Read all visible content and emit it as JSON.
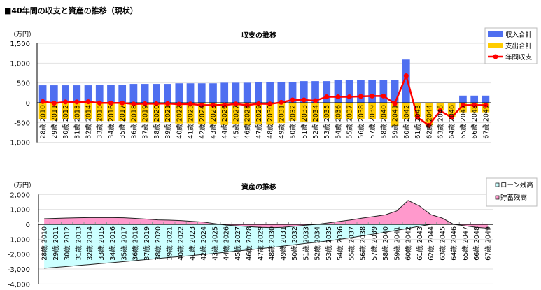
{
  "page_title": "■40年間の収支と資産の推移（現状）",
  "chart_data": [
    {
      "type": "bar",
      "title": "収支の推移",
      "ylabel": "（万円）",
      "ylim": [
        -1000,
        1500
      ],
      "yticks": [
        "1,500",
        "1,000",
        "500",
        "0",
        "-500",
        "-1,000"
      ],
      "ytick_values": [
        1500,
        1000,
        500,
        0,
        -500,
        -1000
      ],
      "grid": true,
      "legend_position": "top-right",
      "categories": [
        "28歳 2010",
        "29歳 2011",
        "30歳 2012",
        "31歳 2013",
        "32歳 2014",
        "33歳 2015",
        "34歳 2016",
        "35歳 2017",
        "36歳 2018",
        "37歳 2019",
        "38歳 2020",
        "39歳 2021",
        "40歳 2022",
        "41歳 2023",
        "42歳 2024",
        "43歳 2025",
        "44歳 2026",
        "45歳 2027",
        "46歳 2028",
        "47歳 2029",
        "48歳 2030",
        "49歳 2031",
        "50歳 2032",
        "51歳 2033",
        "52歳 2034",
        "53歳 2035",
        "54歳 2036",
        "55歳 2037",
        "56歳 2038",
        "57歳 2039",
        "58歳 2040",
        "59歳 2041",
        "60歳 2042",
        "61歳 2043",
        "62歳 2044",
        "63歳 2045",
        "64歳 2046",
        "65歳 2047",
        "66歳 2048",
        "67歳 2049"
      ],
      "series": [
        {
          "name": "収入合計",
          "kind": "bar",
          "color": "#4f6ff0",
          "values": [
            440,
            440,
            440,
            440,
            440,
            455,
            455,
            455,
            475,
            475,
            475,
            475,
            490,
            490,
            490,
            490,
            505,
            505,
            505,
            525,
            525,
            525,
            525,
            545,
            545,
            545,
            565,
            565,
            565,
            580,
            580,
            580,
            1090,
            0,
            0,
            0,
            0,
            180,
            180,
            180
          ]
        },
        {
          "name": "支出合計",
          "kind": "bar",
          "color": "#ffcc00",
          "values": [
            -410,
            -450,
            -420,
            -420,
            -415,
            -460,
            -460,
            -460,
            -505,
            -500,
            -500,
            -495,
            -525,
            -520,
            -550,
            -550,
            -560,
            -535,
            -565,
            -550,
            -555,
            -515,
            -455,
            -475,
            -495,
            -395,
            -415,
            -415,
            -405,
            -410,
            -410,
            -600,
            -410,
            -370,
            -570,
            -200,
            -370,
            -240,
            -240,
            -240
          ]
        },
        {
          "name": "年間収支",
          "kind": "line",
          "color": "#ff0000",
          "values": [
            30,
            -10,
            20,
            20,
            25,
            -5,
            -5,
            -5,
            -30,
            -25,
            -25,
            -20,
            -35,
            -30,
            -60,
            -60,
            -55,
            -30,
            -60,
            -25,
            -30,
            10,
            70,
            70,
            50,
            150,
            150,
            150,
            160,
            170,
            170,
            -20,
            680,
            -370,
            -570,
            -200,
            -370,
            -60,
            -60,
            -60
          ]
        }
      ]
    },
    {
      "type": "area",
      "title": "資産の推移",
      "ylabel": "（万円）",
      "ylim": [
        -4000,
        2000
      ],
      "yticks": [
        "2,000",
        "1,000",
        "0",
        "-1,000",
        "-2,000",
        "-3,000",
        "-4,000"
      ],
      "ytick_values": [
        2000,
        1000,
        0,
        -1000,
        -2000,
        -3000,
        -4000
      ],
      "grid": true,
      "legend_position": "top-right",
      "categories": [
        "28歳 2010",
        "29歳 2011",
        "30歳 2012",
        "31歳 2013",
        "32歳 2014",
        "33歳 2015",
        "34歳 2016",
        "35歳 2017",
        "36歳 2018",
        "37歳 2019",
        "38歳 2020",
        "39歳 2021",
        "40歳 2022",
        "41歳 2023",
        "42歳 2024",
        "43歳 2025",
        "44歳 2026",
        "45歳 2027",
        "46歳 2028",
        "47歳 2029",
        "48歳 2030",
        "49歳 2031",
        "50歳 2032",
        "51歳 2033",
        "52歳 2034",
        "53歳 2035",
        "54歳 2036",
        "55歳 2037",
        "56歳 2038",
        "57歳 2039",
        "58歳 2040",
        "59歳 2041",
        "60歳 2042",
        "61歳 2043",
        "62歳 2044",
        "63歳 2045",
        "64歳 2046",
        "65歳 2047",
        "66歳 2048",
        "67歳 2049"
      ],
      "series": [
        {
          "name": "ローン残高",
          "color": "#ccffff",
          "values": [
            -2950,
            -2890,
            -2830,
            -2760,
            -2700,
            -2630,
            -2570,
            -2500,
            -2430,
            -2360,
            -2290,
            -2220,
            -2160,
            -2090,
            -2020,
            -1950,
            -1870,
            -1790,
            -1710,
            -1630,
            -1550,
            -1460,
            -1370,
            -1280,
            -1200,
            -1110,
            -1000,
            -890,
            -770,
            -650,
            -530,
            -400,
            -270,
            -130,
            0,
            0,
            0,
            0,
            0,
            0
          ]
        },
        {
          "name": "貯蓄残高",
          "color": "#ff99cc",
          "values": [
            375,
            400,
            420,
            440,
            450,
            450,
            450,
            440,
            400,
            350,
            300,
            280,
            250,
            200,
            150,
            50,
            -50,
            -100,
            -150,
            -200,
            -220,
            -200,
            -130,
            -60,
            0,
            100,
            200,
            300,
            420,
            530,
            640,
            900,
            1600,
            1230,
            650,
            420,
            0,
            -100,
            -200,
            -260
          ]
        }
      ]
    }
  ]
}
